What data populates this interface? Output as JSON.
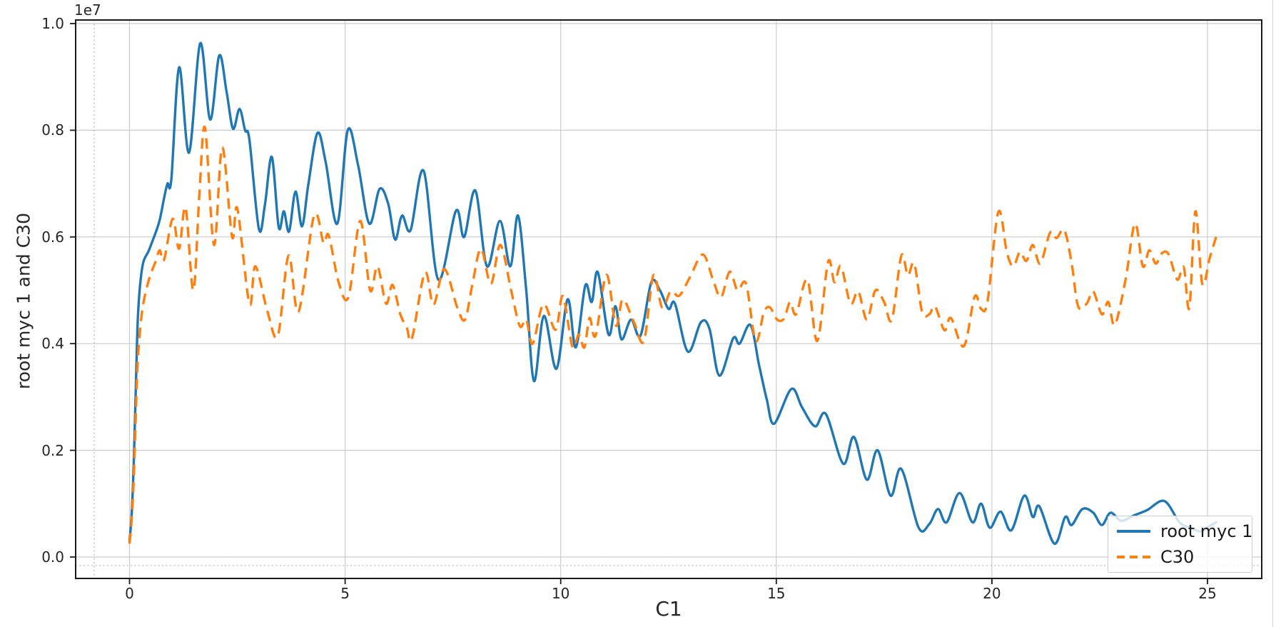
{
  "chart_data": {
    "type": "line",
    "title": "",
    "xlabel": "C1",
    "ylabel": "root myc 1 and C30",
    "y_offset_text": "1e7",
    "y_unit_multiplier": 10000000,
    "xlim": [
      -1.25,
      26.25
    ],
    "ylim": [
      -0.043,
      1.007
    ],
    "grid": true,
    "legend_position": "lower right",
    "x_ticks": [
      0,
      5,
      10,
      15,
      20,
      25
    ],
    "x_tick_labels": [
      "0",
      "5",
      "10",
      "15",
      "20",
      "25"
    ],
    "y_ticks": [
      0.0,
      0.2,
      0.4,
      0.6,
      0.8,
      1.0
    ],
    "y_tick_labels": [
      "0.0",
      "0.2",
      "0.4",
      "0.6",
      "0.8",
      "1.0"
    ],
    "reference_dotted_lines": {
      "x": -0.82,
      "y": -0.016
    },
    "colors": {
      "grid": "#cccccc",
      "spine": "#1a1a1a",
      "dotted_ref": "#b3b3b3",
      "text": "#262626"
    },
    "series": [
      {
        "name": "root myc 1",
        "color": "#1f77b4",
        "style": "solid",
        "points": [
          [
            0,
            0.03
          ],
          [
            0.05,
            0.08
          ],
          [
            0.1,
            0.18
          ],
          [
            0.15,
            0.33
          ],
          [
            0.2,
            0.46
          ],
          [
            0.3,
            0.545
          ],
          [
            0.45,
            0.575
          ],
          [
            0.6,
            0.607
          ],
          [
            0.7,
            0.632
          ],
          [
            0.8,
            0.672
          ],
          [
            0.88,
            0.7
          ],
          [
            0.97,
            0.708
          ],
          [
            1.15,
            0.918
          ],
          [
            1.38,
            0.758
          ],
          [
            1.64,
            0.963
          ],
          [
            1.87,
            0.82
          ],
          [
            2.08,
            0.94
          ],
          [
            2.25,
            0.873
          ],
          [
            2.4,
            0.803
          ],
          [
            2.55,
            0.84
          ],
          [
            2.68,
            0.8
          ],
          [
            2.78,
            0.782
          ],
          [
            3.0,
            0.615
          ],
          [
            3.14,
            0.66
          ],
          [
            3.3,
            0.75
          ],
          [
            3.46,
            0.618
          ],
          [
            3.58,
            0.648
          ],
          [
            3.7,
            0.61
          ],
          [
            3.85,
            0.685
          ],
          [
            4.0,
            0.62
          ],
          [
            4.15,
            0.7
          ],
          [
            4.36,
            0.795
          ],
          [
            4.55,
            0.74
          ],
          [
            4.82,
            0.625
          ],
          [
            5.06,
            0.8
          ],
          [
            5.3,
            0.735
          ],
          [
            5.56,
            0.625
          ],
          [
            5.8,
            0.69
          ],
          [
            6.0,
            0.662
          ],
          [
            6.16,
            0.595
          ],
          [
            6.32,
            0.64
          ],
          [
            6.52,
            0.613
          ],
          [
            6.82,
            0.724
          ],
          [
            7.16,
            0.52
          ],
          [
            7.57,
            0.649
          ],
          [
            7.76,
            0.6
          ],
          [
            8.02,
            0.687
          ],
          [
            8.29,
            0.545
          ],
          [
            8.59,
            0.63
          ],
          [
            8.83,
            0.545
          ],
          [
            9.01,
            0.64
          ],
          [
            9.2,
            0.5
          ],
          [
            9.38,
            0.33
          ],
          [
            9.61,
            0.452
          ],
          [
            9.9,
            0.353
          ],
          [
            10.16,
            0.483
          ],
          [
            10.35,
            0.393
          ],
          [
            10.57,
            0.509
          ],
          [
            10.72,
            0.478
          ],
          [
            10.86,
            0.534
          ],
          [
            11.11,
            0.417
          ],
          [
            11.27,
            0.47
          ],
          [
            11.41,
            0.408
          ],
          [
            11.63,
            0.445
          ],
          [
            11.85,
            0.415
          ],
          [
            12.1,
            0.515
          ],
          [
            12.3,
            0.5
          ],
          [
            12.5,
            0.465
          ],
          [
            12.65,
            0.475
          ],
          [
            12.95,
            0.385
          ],
          [
            13.25,
            0.44
          ],
          [
            13.45,
            0.428
          ],
          [
            13.68,
            0.34
          ],
          [
            14.0,
            0.41
          ],
          [
            14.15,
            0.4
          ],
          [
            14.4,
            0.435
          ],
          [
            14.6,
            0.36
          ],
          [
            14.78,
            0.295
          ],
          [
            14.95,
            0.25
          ],
          [
            15.35,
            0.315
          ],
          [
            15.6,
            0.28
          ],
          [
            15.9,
            0.245
          ],
          [
            16.15,
            0.268
          ],
          [
            16.55,
            0.175
          ],
          [
            16.8,
            0.225
          ],
          [
            17.1,
            0.145
          ],
          [
            17.35,
            0.2
          ],
          [
            17.65,
            0.115
          ],
          [
            17.9,
            0.165
          ],
          [
            18.3,
            0.055
          ],
          [
            18.55,
            0.062
          ],
          [
            18.75,
            0.09
          ],
          [
            18.95,
            0.065
          ],
          [
            19.25,
            0.12
          ],
          [
            19.55,
            0.065
          ],
          [
            19.75,
            0.1
          ],
          [
            19.95,
            0.055
          ],
          [
            20.2,
            0.085
          ],
          [
            20.45,
            0.05
          ],
          [
            20.75,
            0.115
          ],
          [
            20.95,
            0.075
          ],
          [
            21.1,
            0.095
          ],
          [
            21.45,
            0.025
          ],
          [
            21.7,
            0.075
          ],
          [
            21.85,
            0.06
          ],
          [
            22.1,
            0.09
          ],
          [
            22.35,
            0.083
          ],
          [
            22.55,
            0.06
          ],
          [
            22.75,
            0.083
          ],
          [
            23.0,
            0.068
          ],
          [
            23.3,
            0.078
          ],
          [
            23.6,
            0.088
          ],
          [
            24.0,
            0.105
          ],
          [
            24.35,
            0.065
          ],
          [
            24.6,
            0.055
          ],
          [
            24.85,
            0.048
          ],
          [
            25.05,
            0.058
          ],
          [
            25.2,
            0.065
          ]
        ]
      },
      {
        "name": "C30",
        "color": "#ff7f0e",
        "style": "dashed",
        "points": [
          [
            0,
            0.025
          ],
          [
            0.05,
            0.07
          ],
          [
            0.1,
            0.15
          ],
          [
            0.15,
            0.28
          ],
          [
            0.2,
            0.38
          ],
          [
            0.3,
            0.465
          ],
          [
            0.45,
            0.52
          ],
          [
            0.6,
            0.553
          ],
          [
            0.7,
            0.575
          ],
          [
            0.8,
            0.557
          ],
          [
            1.0,
            0.634
          ],
          [
            1.15,
            0.578
          ],
          [
            1.3,
            0.655
          ],
          [
            1.48,
            0.5
          ],
          [
            1.62,
            0.68
          ],
          [
            1.75,
            0.805
          ],
          [
            1.96,
            0.585
          ],
          [
            2.15,
            0.768
          ],
          [
            2.38,
            0.6
          ],
          [
            2.5,
            0.653
          ],
          [
            2.78,
            0.475
          ],
          [
            2.92,
            0.545
          ],
          [
            3.2,
            0.46
          ],
          [
            3.44,
            0.415
          ],
          [
            3.69,
            0.565
          ],
          [
            3.92,
            0.46
          ],
          [
            4.28,
            0.64
          ],
          [
            4.5,
            0.589
          ],
          [
            4.62,
            0.603
          ],
          [
            4.85,
            0.515
          ],
          [
            5.08,
            0.488
          ],
          [
            5.35,
            0.63
          ],
          [
            5.58,
            0.5
          ],
          [
            5.75,
            0.545
          ],
          [
            5.95,
            0.475
          ],
          [
            6.1,
            0.51
          ],
          [
            6.28,
            0.455
          ],
          [
            6.43,
            0.43
          ],
          [
            6.55,
            0.41
          ],
          [
            6.85,
            0.533
          ],
          [
            7.05,
            0.473
          ],
          [
            7.3,
            0.54
          ],
          [
            7.6,
            0.468
          ],
          [
            7.78,
            0.445
          ],
          [
            7.95,
            0.51
          ],
          [
            8.15,
            0.578
          ],
          [
            8.38,
            0.512
          ],
          [
            8.6,
            0.585
          ],
          [
            8.85,
            0.5
          ],
          [
            9.05,
            0.433
          ],
          [
            9.2,
            0.445
          ],
          [
            9.35,
            0.4
          ],
          [
            9.6,
            0.474
          ],
          [
            9.88,
            0.426
          ],
          [
            10.05,
            0.489
          ],
          [
            10.27,
            0.395
          ],
          [
            10.42,
            0.417
          ],
          [
            10.55,
            0.393
          ],
          [
            10.67,
            0.448
          ],
          [
            10.81,
            0.415
          ],
          [
            11.06,
            0.529
          ],
          [
            11.28,
            0.434
          ],
          [
            11.44,
            0.483
          ],
          [
            11.7,
            0.44
          ],
          [
            11.93,
            0.405
          ],
          [
            12.15,
            0.528
          ],
          [
            12.35,
            0.468
          ],
          [
            12.55,
            0.498
          ],
          [
            12.75,
            0.49
          ],
          [
            13.0,
            0.525
          ],
          [
            13.3,
            0.567
          ],
          [
            13.55,
            0.515
          ],
          [
            13.72,
            0.487
          ],
          [
            13.92,
            0.535
          ],
          [
            14.1,
            0.5
          ],
          [
            14.3,
            0.512
          ],
          [
            14.52,
            0.405
          ],
          [
            14.71,
            0.458
          ],
          [
            14.85,
            0.468
          ],
          [
            15.02,
            0.445
          ],
          [
            15.18,
            0.447
          ],
          [
            15.32,
            0.478
          ],
          [
            15.46,
            0.455
          ],
          [
            15.72,
            0.52
          ],
          [
            15.95,
            0.405
          ],
          [
            16.2,
            0.553
          ],
          [
            16.35,
            0.515
          ],
          [
            16.5,
            0.545
          ],
          [
            16.72,
            0.475
          ],
          [
            16.9,
            0.498
          ],
          [
            17.1,
            0.445
          ],
          [
            17.3,
            0.5
          ],
          [
            17.5,
            0.478
          ],
          [
            17.68,
            0.445
          ],
          [
            17.9,
            0.565
          ],
          [
            18.05,
            0.528
          ],
          [
            18.2,
            0.55
          ],
          [
            18.38,
            0.46
          ],
          [
            18.55,
            0.455
          ],
          [
            18.68,
            0.47
          ],
          [
            18.9,
            0.425
          ],
          [
            19.05,
            0.448
          ],
          [
            19.35,
            0.395
          ],
          [
            19.6,
            0.488
          ],
          [
            19.75,
            0.465
          ],
          [
            19.9,
            0.48
          ],
          [
            20.15,
            0.647
          ],
          [
            20.35,
            0.57
          ],
          [
            20.5,
            0.545
          ],
          [
            20.65,
            0.572
          ],
          [
            20.8,
            0.555
          ],
          [
            20.95,
            0.585
          ],
          [
            21.12,
            0.55
          ],
          [
            21.35,
            0.608
          ],
          [
            21.5,
            0.598
          ],
          [
            21.68,
            0.613
          ],
          [
            21.85,
            0.55
          ],
          [
            22.0,
            0.47
          ],
          [
            22.2,
            0.475
          ],
          [
            22.35,
            0.498
          ],
          [
            22.55,
            0.455
          ],
          [
            22.7,
            0.478
          ],
          [
            22.85,
            0.435
          ],
          [
            23.1,
            0.52
          ],
          [
            23.32,
            0.625
          ],
          [
            23.5,
            0.545
          ],
          [
            23.65,
            0.575
          ],
          [
            23.8,
            0.55
          ],
          [
            23.95,
            0.57
          ],
          [
            24.1,
            0.567
          ],
          [
            24.3,
            0.52
          ],
          [
            24.45,
            0.543
          ],
          [
            24.58,
            0.467
          ],
          [
            24.72,
            0.648
          ],
          [
            24.88,
            0.512
          ],
          [
            25.05,
            0.56
          ],
          [
            25.2,
            0.6
          ]
        ]
      }
    ]
  }
}
